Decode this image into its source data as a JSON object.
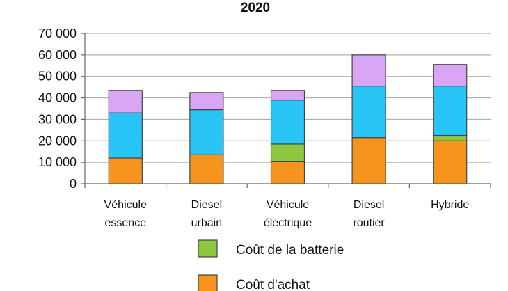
{
  "chart_data": {
    "type": "bar",
    "stacked": true,
    "title": "2020",
    "categories": [
      [
        "Véhicule",
        "essence"
      ],
      [
        "Diesel",
        "urbain"
      ],
      [
        "Véhicule",
        "électrique"
      ],
      [
        "Diesel",
        "routier"
      ],
      [
        "Hybride"
      ]
    ],
    "ylim": [
      0,
      70000
    ],
    "yticks": [
      "0",
      "10 000",
      "20 000",
      "30 000",
      "40 000",
      "50 000",
      "60 000",
      "70 000"
    ],
    "grid": true,
    "legend_position": "bottom",
    "series": [
      {
        "name": "Coût d'achat",
        "color": "#F7941D",
        "values": [
          12000,
          13500,
          10500,
          21500,
          20000
        ]
      },
      {
        "name": "Coût de la batterie",
        "color": "#8DC63F",
        "values": [
          0,
          0,
          8000,
          0,
          2500
        ]
      },
      {
        "color": "#29C5F6",
        "values": [
          21000,
          21000,
          20500,
          24000,
          23000
        ]
      },
      {
        "color": "#D9A6F5",
        "values": [
          10500,
          8000,
          4500,
          14500,
          10000
        ]
      }
    ],
    "legend_visible": [
      "Coût de la batterie",
      "Coût d'achat"
    ]
  }
}
